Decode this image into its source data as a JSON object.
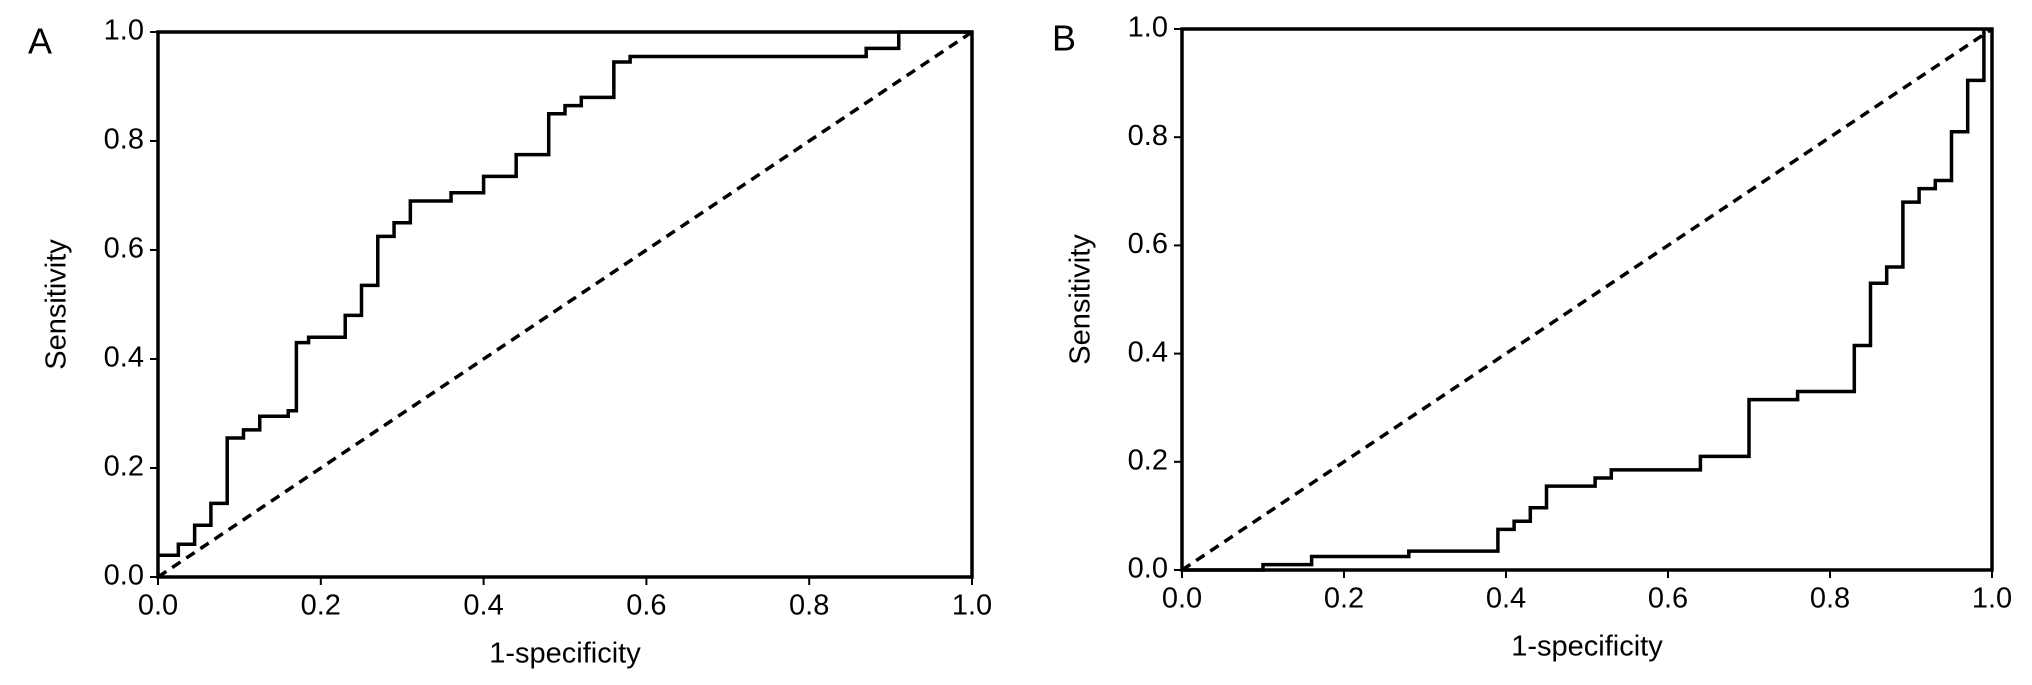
{
  "chart_data": [
    {
      "type": "line",
      "panel_label": "A",
      "xlabel": "1-specificity",
      "ylabel": "Sensitivity",
      "xlim": [
        0,
        1
      ],
      "ylim": [
        0,
        1
      ],
      "xticks": [
        {
          "value": 0,
          "label": "0.0"
        },
        0.2,
        0.4,
        0.6,
        0.8,
        {
          "value": 1,
          "label": "1.0"
        }
      ],
      "yticks": [
        {
          "value": 0,
          "label": "0.0"
        },
        0.2,
        0.4,
        0.6,
        0.8,
        {
          "value": 1,
          "label": "1.0"
        }
      ],
      "series": [
        {
          "color": "#000000",
          "linestyle": "solid",
          "x": [
            0,
            0.025,
            0.025,
            0.045,
            0.045,
            0.065,
            0.065,
            0.085,
            0.085,
            0.105,
            0.105,
            0.125,
            0.125,
            0.16,
            0.16,
            0.17,
            0.17,
            0.185,
            0.185,
            0.23,
            0.23,
            0.25,
            0.25,
            0.27,
            0.27,
            0.29,
            0.29,
            0.31,
            0.31,
            0.36,
            0.36,
            0.4,
            0.4,
            0.44,
            0.44,
            0.48,
            0.48,
            0.5,
            0.5,
            0.52,
            0.52,
            0.56,
            0.56,
            0.58,
            0.58,
            0.87,
            0.87,
            0.91,
            0.91,
            1
          ],
          "y": [
            0.04,
            0.04,
            0.06,
            0.06,
            0.095,
            0.095,
            0.135,
            0.135,
            0.255,
            0.255,
            0.27,
            0.27,
            0.295,
            0.295,
            0.305,
            0.305,
            0.43,
            0.43,
            0.44,
            0.44,
            0.48,
            0.48,
            0.535,
            0.535,
            0.625,
            0.625,
            0.65,
            0.65,
            0.69,
            0.69,
            0.705,
            0.705,
            0.735,
            0.735,
            0.775,
            0.775,
            0.85,
            0.85,
            0.865,
            0.865,
            0.88,
            0.88,
            0.945,
            0.945,
            0.955,
            0.955,
            0.97,
            0.97,
            1,
            1
          ]
        },
        {
          "color": "#000000",
          "linestyle": "dashed",
          "x": [
            0,
            1
          ],
          "y": [
            0,
            1
          ]
        }
      ]
    },
    {
      "type": "line",
      "panel_label": "B",
      "xlabel": "1-specificity",
      "ylabel": "Sensitivity",
      "xlim": [
        0,
        1
      ],
      "ylim": [
        0,
        1
      ],
      "xticks": [
        {
          "value": 0,
          "label": "0.0"
        },
        0.2,
        0.4,
        0.6,
        0.8,
        {
          "value": 1,
          "label": "1.0"
        }
      ],
      "yticks": [
        {
          "value": 0,
          "label": "0.0"
        },
        0.2,
        0.4,
        0.6,
        0.8,
        {
          "value": 1,
          "label": "1.0"
        }
      ],
      "series": [
        {
          "color": "#000000",
          "linestyle": "solid",
          "x": [
            0,
            0.1,
            0.1,
            0.16,
            0.16,
            0.28,
            0.28,
            0.39,
            0.39,
            0.41,
            0.41,
            0.43,
            0.43,
            0.45,
            0.45,
            0.51,
            0.51,
            0.53,
            0.53,
            0.64,
            0.64,
            0.7,
            0.7,
            0.76,
            0.76,
            0.83,
            0.83,
            0.85,
            0.85,
            0.87,
            0.87,
            0.89,
            0.89,
            0.91,
            0.91,
            0.93,
            0.93,
            0.95,
            0.95,
            0.97,
            0.97,
            0.99,
            0.99
          ],
          "y": [
            0,
            0,
            0.01,
            0.01,
            0.025,
            0.025,
            0.035,
            0.035,
            0.075,
            0.075,
            0.09,
            0.09,
            0.115,
            0.115,
            0.155,
            0.155,
            0.17,
            0.17,
            0.185,
            0.185,
            0.21,
            0.21,
            0.315,
            0.315,
            0.33,
            0.33,
            0.415,
            0.415,
            0.53,
            0.53,
            0.56,
            0.56,
            0.68,
            0.68,
            0.705,
            0.705,
            0.72,
            0.72,
            0.81,
            0.81,
            0.905,
            0.905,
            1
          ]
        },
        {
          "color": "#000000",
          "linestyle": "dashed",
          "x": [
            0,
            1
          ],
          "y": [
            0,
            1
          ]
        }
      ]
    }
  ]
}
